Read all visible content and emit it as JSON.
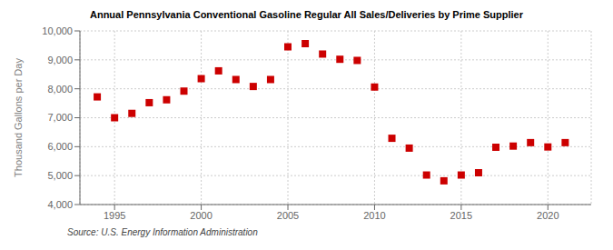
{
  "chart_data": {
    "type": "scatter",
    "title": "Annual Pennsylvania Conventional Gasoline Regular All Sales/Deliveries by Prime Supplier",
    "ylabel": "Thousand Gallons per Day",
    "annotations": [
      "Source: U.S. Energy Information Administration"
    ],
    "x": [
      1994,
      1995,
      1996,
      1997,
      1998,
      1999,
      2000,
      2001,
      2002,
      2003,
      2004,
      2005,
      2006,
      2007,
      2008,
      2009,
      2010,
      2011,
      2012,
      2013,
      2014,
      2015,
      2016,
      2017,
      2018,
      2019,
      2020,
      2021
    ],
    "values": [
      7720,
      7000,
      7150,
      7520,
      7620,
      7920,
      8350,
      8620,
      8320,
      8080,
      8320,
      9450,
      9560,
      9200,
      9020,
      8980,
      8060,
      6290,
      5950,
      5020,
      4820,
      5020,
      5100,
      5980,
      6020,
      6140,
      5990,
      6140
    ],
    "color": "#cc0000",
    "marker": "square",
    "xlim": [
      1993.0,
      2022.5
    ],
    "xticks": [
      1995,
      2000,
      2005,
      2010,
      2015,
      2020
    ],
    "ylim": [
      4000,
      10000
    ],
    "yticks": [
      {
        "value": 4000,
        "label": "4,000"
      },
      {
        "value": 5000,
        "label": "5,000"
      },
      {
        "value": 6000,
        "label": "6,000"
      },
      {
        "value": 7000,
        "label": "7,000"
      },
      {
        "value": 8000,
        "label": "8,000"
      },
      {
        "value": 9000,
        "label": "9,000"
      },
      {
        "value": 10000,
        "label": "10,000"
      }
    ],
    "grid": true
  }
}
